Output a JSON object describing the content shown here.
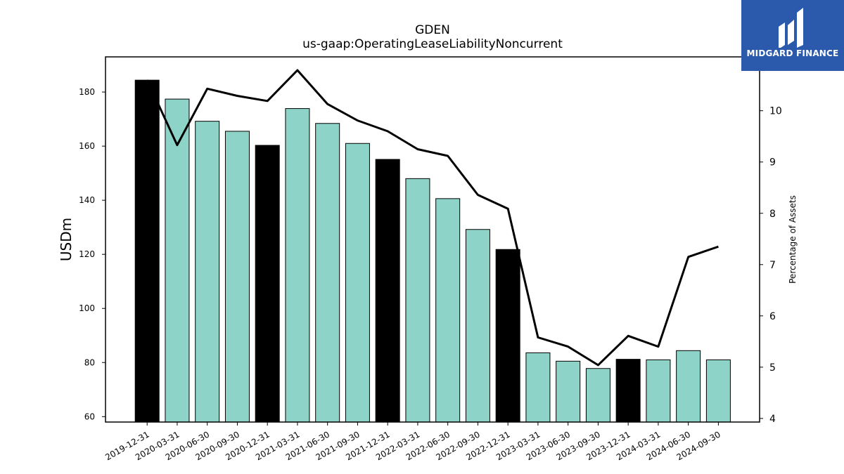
{
  "brand": {
    "name": "MIDGARD FINANCE",
    "color": "#2b5aad"
  },
  "chart_data": {
    "type": "bar",
    "title": "GDEN",
    "subtitle": "us-gaap:OperatingLeaseLiabilityNoncurrent",
    "xlabel": "",
    "ylabel": "USDm",
    "y2label": "Percentage of Assets",
    "ylim": [
      58,
      193
    ],
    "y2lim": [
      3.93,
      11.05
    ],
    "yticks": [
      60,
      80,
      100,
      120,
      140,
      160,
      180
    ],
    "y2ticks": [
      4,
      5,
      6,
      7,
      8,
      9,
      10
    ],
    "categories": [
      "2019-12-31",
      "2020-03-31",
      "2020-06-30",
      "2020-09-30",
      "2020-12-31",
      "2021-03-31",
      "2021-06-30",
      "2021-09-30",
      "2021-12-31",
      "2022-03-31",
      "2022-06-30",
      "2022-09-30",
      "2022-12-31",
      "2023-03-31",
      "2023-06-30",
      "2023-09-30",
      "2023-12-31",
      "2024-03-31",
      "2024-06-30",
      "2024-09-30"
    ],
    "series": [
      {
        "values": [
          184.4,
          177.4,
          169.2,
          165.5,
          160.3,
          173.9,
          168.4,
          161.0,
          155.1,
          148.0,
          140.6,
          129.2,
          121.8,
          83.6,
          80.5,
          77.8,
          81.2,
          81.0,
          84.4,
          81.0
        ]
      },
      {
        "axis": "right",
        "type": "line",
        "values": [
          10.6,
          9.33,
          10.43,
          10.29,
          10.19,
          10.79,
          10.13,
          9.81,
          9.6,
          9.25,
          9.12,
          8.36,
          8.09,
          5.58,
          5.4,
          5.04,
          5.61,
          5.4,
          7.15,
          7.35
        ]
      }
    ],
    "colors": {
      "bar": "#8dd3c7",
      "bar_year_end": "#000000",
      "line": "#000000"
    }
  }
}
